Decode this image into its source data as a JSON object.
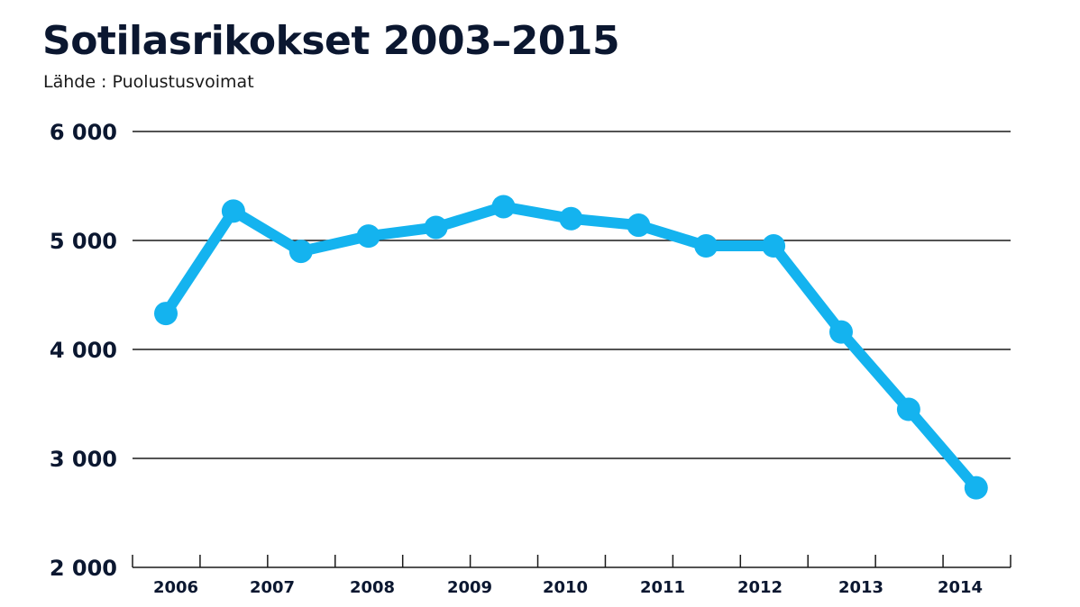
{
  "title": "Sotilasrikokset 2003–2015",
  "source": "Lähde : Puolustusvoimat",
  "colors": {
    "line": "#14b3ef",
    "grid": "#1a1a1a",
    "text": "#0b1730"
  },
  "chart_data": {
    "type": "line",
    "title": "Sotilasrikokset 2003–2015",
    "subtitle": "Lähde : Puolustusvoimat",
    "xlabel": "",
    "ylabel": "",
    "ylim": [
      2000,
      6000
    ],
    "yticks": [
      2000,
      3000,
      4000,
      5000,
      6000
    ],
    "ytick_labels": [
      "2 000",
      "3 000",
      "4 000",
      "5 000",
      "6 000"
    ],
    "xtick_labels": [
      "2006",
      "2007",
      "2008",
      "2009",
      "2010",
      "2011",
      "2012",
      "2013",
      "2014"
    ],
    "grid": true,
    "series": [
      {
        "values": [
          4330,
          5270,
          4900,
          5040,
          5120,
          5310,
          5200,
          5140,
          4950,
          4950,
          4160,
          3450,
          2730
        ]
      }
    ]
  }
}
